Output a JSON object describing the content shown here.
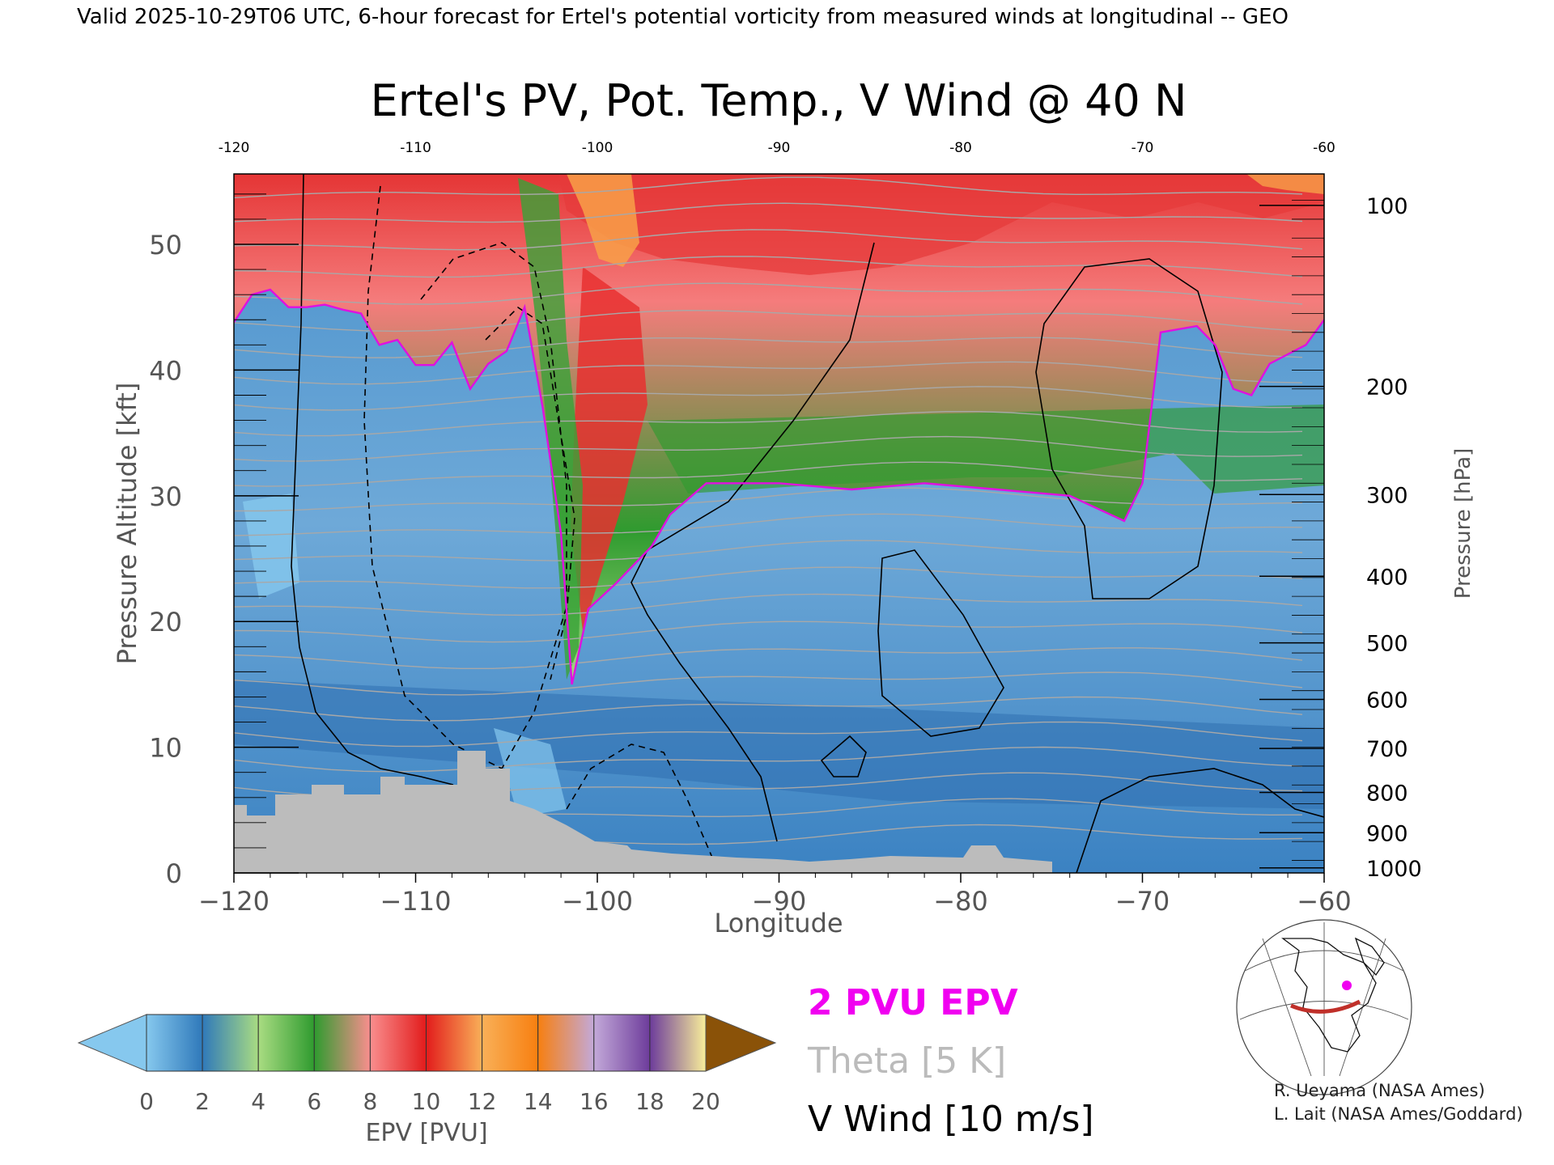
{
  "header": {
    "valid_line": "Valid 2025-10-29T06 UTC, 6-hour forecast for Ertel's potential vorticity from measured winds at longitudinal -- GEO"
  },
  "chart_data": {
    "type": "heatmap",
    "title": "Ertel's PV, Pot. Temp., V Wind @ 40 N",
    "xlabel": "Longitude",
    "ylabel_left": "Pressure Altitude [kft]",
    "ylabel_right": "Pressure [hPa]",
    "xlim": [
      -120,
      -60
    ],
    "ylim": [
      0,
      55.6
    ],
    "x_ticks": [
      -120,
      -110,
      -100,
      -90,
      -80,
      -70,
      -60
    ],
    "x_tick_labels": [
      "−120",
      "−110",
      "−100",
      "−90",
      "−80",
      "−70",
      "−60"
    ],
    "x_top_tick_labels": [
      "-120",
      "-110",
      "-100",
      "-90",
      "-80",
      "-70",
      "-60"
    ],
    "y_ticks": [
      0,
      10,
      20,
      30,
      40,
      50
    ],
    "y_tick_labels": [
      "0",
      "10",
      "20",
      "30",
      "40",
      "50"
    ],
    "pressure_ticks": [
      {
        "hpa": 100,
        "kft": 53.1,
        "label": "100"
      },
      {
        "hpa": 200,
        "kft": 38.7,
        "label": "200"
      },
      {
        "hpa": 300,
        "kft": 30.1,
        "label": "300"
      },
      {
        "hpa": 400,
        "kft": 23.6,
        "label": "400"
      },
      {
        "hpa": 500,
        "kft": 18.3,
        "label": "500"
      },
      {
        "hpa": 600,
        "kft": 13.8,
        "label": "600"
      },
      {
        "hpa": 700,
        "kft": 9.9,
        "label": "700"
      },
      {
        "hpa": 800,
        "kft": 6.4,
        "label": "800"
      },
      {
        "hpa": 900,
        "kft": 3.2,
        "label": "900"
      },
      {
        "hpa": 1000,
        "kft": 0.4,
        "label": "1000"
      }
    ],
    "colorbar": {
      "label": "EPV [PVU]",
      "ticks": [
        "0",
        "2",
        "4",
        "6",
        "8",
        "10",
        "12",
        "14",
        "16",
        "18",
        "20"
      ],
      "colors": [
        "#86c8ee",
        "#2f79ba",
        "#a9dc82",
        "#2f9b2f",
        "#f98e8e",
        "#e21c1c",
        "#f9b058",
        "#f77f10",
        "#c3a9d9",
        "#6d3c9b",
        "#f8ee9a",
        "#8a5208"
      ]
    },
    "legend": [
      {
        "text": "2 PVU EPV",
        "color": "#f000f0"
      },
      {
        "text": "Theta [5 K]",
        "color": "#bbbbbb"
      },
      {
        "text": "V Wind [10 m/s]",
        "color": "#000000"
      }
    ],
    "tropopause_2pvu": [
      [
        -120,
        43.8
      ],
      [
        -119,
        46.0
      ],
      [
        -118,
        46.4
      ],
      [
        -117,
        45.0
      ],
      [
        -116,
        45.0
      ],
      [
        -115,
        45.2
      ],
      [
        -114,
        44.8
      ],
      [
        -113,
        44.5
      ],
      [
        -112,
        42.0
      ],
      [
        -111,
        42.4
      ],
      [
        -110,
        40.4
      ],
      [
        -109,
        40.4
      ],
      [
        -108,
        42.2
      ],
      [
        -107,
        38.5
      ],
      [
        -106,
        40.5
      ],
      [
        -105,
        41.5
      ],
      [
        -104,
        45.0
      ],
      [
        -103,
        37.0
      ],
      [
        -102,
        27.0
      ],
      [
        -101.4,
        15.0
      ],
      [
        -100.5,
        21.0
      ],
      [
        -99,
        23.0
      ],
      [
        -97,
        26.0
      ],
      [
        -96,
        28.5
      ],
      [
        -94,
        31.0
      ],
      [
        -90,
        31.0
      ],
      [
        -86,
        30.5
      ],
      [
        -82,
        31.0
      ],
      [
        -78,
        30.5
      ],
      [
        -74,
        30.0
      ],
      [
        -71,
        28.0
      ],
      [
        -70,
        31.0
      ],
      [
        -69,
        43.0
      ],
      [
        -67,
        43.5
      ],
      [
        -66,
        42.0
      ],
      [
        -65,
        38.5
      ],
      [
        -64,
        38.0
      ],
      [
        -63,
        40.5
      ],
      [
        -61,
        42.0
      ],
      [
        -60,
        44.0
      ]
    ],
    "annotations": {
      "map_inset": "40 N cross-section location",
      "credits": [
        "R. Ueyama (NASA Ames)",
        "L. Lait (NASA Ames/Goddard)"
      ]
    }
  }
}
